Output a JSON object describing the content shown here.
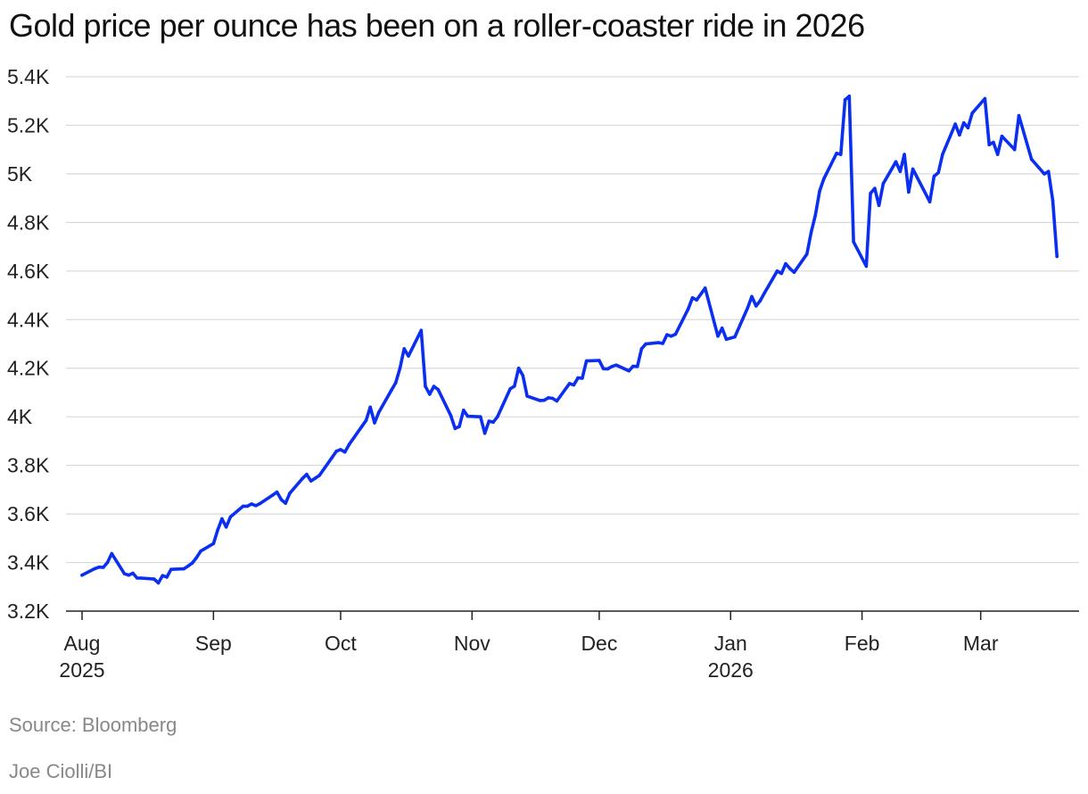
{
  "title": "Gold price per ounce has been on a roller-coaster ride in 2026",
  "source": "Source: Bloomberg",
  "credit": "Joe Ciolli/BI",
  "colors": {
    "line": "#0a2ff0",
    "grid": "#d9d9d9",
    "axis": "#222222"
  },
  "chart_data": {
    "type": "line",
    "title": "Gold price per ounce has been on a roller-coaster ride in 2026",
    "xlabel": "",
    "ylabel": "",
    "ylim": [
      3200,
      5400
    ],
    "xlim": [
      "2025-08-01",
      "2026-03-20"
    ],
    "grid": true,
    "y_ticks": [
      {
        "value": 3200,
        "label": "3.2K"
      },
      {
        "value": 3400,
        "label": "3.4K"
      },
      {
        "value": 3600,
        "label": "3.6K"
      },
      {
        "value": 3800,
        "label": "3.8K"
      },
      {
        "value": 4000,
        "label": "4K"
      },
      {
        "value": 4200,
        "label": "4.2K"
      },
      {
        "value": 4400,
        "label": "4.4K"
      },
      {
        "value": 4600,
        "label": "4.6K"
      },
      {
        "value": 4800,
        "label": "4.8K"
      },
      {
        "value": 5000,
        "label": "5K"
      },
      {
        "value": 5200,
        "label": "5.2K"
      },
      {
        "value": 5400,
        "label": "5.4K"
      }
    ],
    "x_ticks": [
      {
        "date": "2025-08-01",
        "label": "Aug",
        "sublabel": "2025"
      },
      {
        "date": "2025-09-01",
        "label": "Sep",
        "sublabel": ""
      },
      {
        "date": "2025-10-01",
        "label": "Oct",
        "sublabel": ""
      },
      {
        "date": "2025-11-01",
        "label": "Nov",
        "sublabel": ""
      },
      {
        "date": "2025-12-01",
        "label": "Dec",
        "sublabel": ""
      },
      {
        "date": "2026-01-01",
        "label": "Jan",
        "sublabel": "2026"
      },
      {
        "date": "2026-02-01",
        "label": "Feb",
        "sublabel": ""
      },
      {
        "date": "2026-03-01",
        "label": "Mar",
        "sublabel": ""
      }
    ],
    "series": [
      {
        "points": [
          [
            "2025-08-01",
            3348
          ],
          [
            "2025-08-04",
            3375
          ],
          [
            "2025-08-05",
            3381
          ],
          [
            "2025-08-06",
            3380
          ],
          [
            "2025-08-07",
            3400
          ],
          [
            "2025-08-08",
            3437
          ],
          [
            "2025-08-11",
            3354
          ],
          [
            "2025-08-12",
            3348
          ],
          [
            "2025-08-13",
            3356
          ],
          [
            "2025-08-14",
            3336
          ],
          [
            "2025-08-15",
            3336
          ],
          [
            "2025-08-18",
            3332
          ],
          [
            "2025-08-19",
            3316
          ],
          [
            "2025-08-20",
            3346
          ],
          [
            "2025-08-21",
            3340
          ],
          [
            "2025-08-22",
            3372
          ],
          [
            "2025-08-25",
            3374
          ],
          [
            "2025-08-26",
            3385
          ],
          [
            "2025-08-27",
            3398
          ],
          [
            "2025-08-28",
            3420
          ],
          [
            "2025-08-29",
            3447
          ],
          [
            "2025-09-01",
            3478
          ],
          [
            "2025-09-02",
            3534
          ],
          [
            "2025-09-03",
            3580
          ],
          [
            "2025-09-04",
            3546
          ],
          [
            "2025-09-05",
            3588
          ],
          [
            "2025-09-08",
            3632
          ],
          [
            "2025-09-09",
            3632
          ],
          [
            "2025-09-10",
            3641
          ],
          [
            "2025-09-11",
            3634
          ],
          [
            "2025-09-12",
            3643
          ],
          [
            "2025-09-15",
            3678
          ],
          [
            "2025-09-16",
            3690
          ],
          [
            "2025-09-17",
            3659
          ],
          [
            "2025-09-18",
            3644
          ],
          [
            "2025-09-19",
            3685
          ],
          [
            "2025-09-22",
            3746
          ],
          [
            "2025-09-23",
            3763
          ],
          [
            "2025-09-24",
            3736
          ],
          [
            "2025-09-25",
            3747
          ],
          [
            "2025-09-26",
            3759
          ],
          [
            "2025-09-29",
            3833
          ],
          [
            "2025-09-30",
            3858
          ],
          [
            "2025-10-01",
            3865
          ],
          [
            "2025-10-02",
            3855
          ],
          [
            "2025-10-03",
            3886
          ],
          [
            "2025-10-06",
            3960
          ],
          [
            "2025-10-07",
            3985
          ],
          [
            "2025-10-08",
            4040
          ],
          [
            "2025-10-09",
            3975
          ],
          [
            "2025-10-10",
            4018
          ],
          [
            "2025-10-13",
            4110
          ],
          [
            "2025-10-14",
            4140
          ],
          [
            "2025-10-15",
            4200
          ],
          [
            "2025-10-16",
            4280
          ],
          [
            "2025-10-17",
            4250
          ],
          [
            "2025-10-20",
            4356
          ],
          [
            "2025-10-21",
            4125
          ],
          [
            "2025-10-22",
            4093
          ],
          [
            "2025-10-23",
            4125
          ],
          [
            "2025-10-24",
            4112
          ],
          [
            "2025-10-27",
            4005
          ],
          [
            "2025-10-28",
            3952
          ],
          [
            "2025-10-29",
            3960
          ],
          [
            "2025-10-30",
            4027
          ],
          [
            "2025-10-31",
            4002
          ],
          [
            "2025-11-03",
            4000
          ],
          [
            "2025-11-04",
            3932
          ],
          [
            "2025-11-05",
            3982
          ],
          [
            "2025-11-06",
            3978
          ],
          [
            "2025-11-07",
            4000
          ],
          [
            "2025-11-10",
            4115
          ],
          [
            "2025-11-11",
            4126
          ],
          [
            "2025-11-12",
            4200
          ],
          [
            "2025-11-13",
            4170
          ],
          [
            "2025-11-14",
            4085
          ],
          [
            "2025-11-17",
            4067
          ],
          [
            "2025-11-18",
            4068
          ],
          [
            "2025-11-19",
            4078
          ],
          [
            "2025-11-20",
            4076
          ],
          [
            "2025-11-21",
            4065
          ],
          [
            "2025-11-24",
            4137
          ],
          [
            "2025-11-25",
            4131
          ],
          [
            "2025-11-26",
            4160
          ],
          [
            "2025-11-27",
            4159
          ],
          [
            "2025-11-28",
            4230
          ],
          [
            "2025-12-01",
            4232
          ],
          [
            "2025-12-02",
            4198
          ],
          [
            "2025-12-03",
            4197
          ],
          [
            "2025-12-04",
            4207
          ],
          [
            "2025-12-05",
            4213
          ],
          [
            "2025-12-08",
            4189
          ],
          [
            "2025-12-09",
            4208
          ],
          [
            "2025-12-10",
            4207
          ],
          [
            "2025-12-11",
            4280
          ],
          [
            "2025-12-12",
            4300
          ],
          [
            "2025-12-15",
            4305
          ],
          [
            "2025-12-16",
            4302
          ],
          [
            "2025-12-17",
            4338
          ],
          [
            "2025-12-18",
            4332
          ],
          [
            "2025-12-19",
            4340
          ],
          [
            "2025-12-22",
            4444
          ],
          [
            "2025-12-23",
            4490
          ],
          [
            "2025-12-24",
            4481
          ],
          [
            "2025-12-26",
            4530
          ],
          [
            "2025-12-29",
            4332
          ],
          [
            "2025-12-30",
            4365
          ],
          [
            "2025-12-31",
            4319
          ],
          [
            "2026-01-02",
            4329
          ],
          [
            "2026-01-05",
            4448
          ],
          [
            "2026-01-06",
            4495
          ],
          [
            "2026-01-07",
            4456
          ],
          [
            "2026-01-08",
            4478
          ],
          [
            "2026-01-09",
            4510
          ],
          [
            "2026-01-12",
            4600
          ],
          [
            "2026-01-13",
            4590
          ],
          [
            "2026-01-14",
            4630
          ],
          [
            "2026-01-15",
            4610
          ],
          [
            "2026-01-16",
            4595
          ],
          [
            "2026-01-19",
            4670
          ],
          [
            "2026-01-20",
            4760
          ],
          [
            "2026-01-21",
            4830
          ],
          [
            "2026-01-22",
            4930
          ],
          [
            "2026-01-23",
            4980
          ],
          [
            "2026-01-26",
            5085
          ],
          [
            "2026-01-27",
            5080
          ],
          [
            "2026-01-28",
            5305
          ],
          [
            "2026-01-29",
            5320
          ],
          [
            "2026-01-30",
            4720
          ],
          [
            "2026-02-02",
            4620
          ],
          [
            "2026-02-03",
            4920
          ],
          [
            "2026-02-04",
            4940
          ],
          [
            "2026-02-05",
            4870
          ],
          [
            "2026-02-06",
            4960
          ],
          [
            "2026-02-09",
            5050
          ],
          [
            "2026-02-10",
            5010
          ],
          [
            "2026-02-11",
            5080
          ],
          [
            "2026-02-12",
            4925
          ],
          [
            "2026-02-13",
            5020
          ],
          [
            "2026-02-17",
            4885
          ],
          [
            "2026-02-18",
            4990
          ],
          [
            "2026-02-19",
            5005
          ],
          [
            "2026-02-20",
            5080
          ],
          [
            "2026-02-23",
            5205
          ],
          [
            "2026-02-24",
            5160
          ],
          [
            "2026-02-25",
            5210
          ],
          [
            "2026-02-26",
            5190
          ],
          [
            "2026-02-27",
            5250
          ],
          [
            "2026-03-02",
            5310
          ],
          [
            "2026-03-03",
            5120
          ],
          [
            "2026-03-04",
            5130
          ],
          [
            "2026-03-05",
            5080
          ],
          [
            "2026-03-06",
            5155
          ],
          [
            "2026-03-09",
            5100
          ],
          [
            "2026-03-10",
            5240
          ],
          [
            "2026-03-13",
            5060
          ],
          [
            "2026-03-16",
            5000
          ],
          [
            "2026-03-17",
            5010
          ],
          [
            "2026-03-18",
            4890
          ],
          [
            "2026-03-19",
            4660
          ]
        ]
      }
    ]
  }
}
